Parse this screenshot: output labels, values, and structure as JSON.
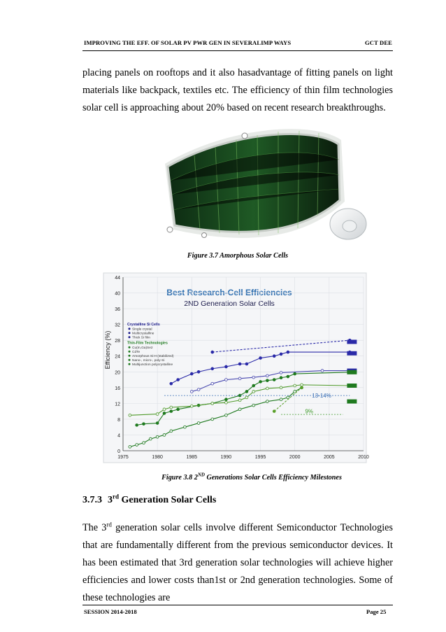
{
  "header": {
    "left": "IMPROVING THE EFF. OF SOLAR PV PWR GEN IN SEVERALIMP WAYS",
    "right": "GCT DEE"
  },
  "para1": "placing panels on rooftops and it also hasadvantage of fitting panels on light materials like backpack, textiles etc. The efficiency of thin film technologies solar cell is approaching about 20% based on recent research breakthroughs.",
  "figure1": {
    "caption": "Figure 3.7 Amorphous Solar Cells"
  },
  "figure2": {
    "caption_pre": "Figure 3.8 2",
    "caption_sup": "ND",
    "caption_post": " Generations Solar Cells Efficiency Milestones"
  },
  "section": {
    "number": "3.7.3",
    "title_pre": "3",
    "title_sup": "rd",
    "title_post": " Generation Solar Cells"
  },
  "para2": {
    "pre": "The 3",
    "sup": "rd",
    "post": " generation solar cells involve different Semiconductor Technologies that are fundamentally different from the previous semiconductor devices. It has been estimated that 3rd generation solar technologies will achieve higher efficiencies and lower costs than1st or 2nd generation technologies. Some of these technologies are"
  },
  "footer": {
    "left": "SESSION 2014-2018",
    "right": "Page 25"
  },
  "chart_data": {
    "type": "line",
    "title": "Best Research-Cell Efficiencies",
    "subtitle": "2ND Generation Solar Cells",
    "ylabel": "Efficiency (%)",
    "xlabel": "",
    "xlim": [
      1975,
      2010
    ],
    "ylim": [
      0,
      44
    ],
    "xticks": [
      "1975",
      "1980",
      "1985",
      "1990",
      "1995",
      "2000",
      "2005",
      "2010"
    ],
    "yticks": [
      "0",
      "4",
      "8",
      "12",
      "16",
      "20",
      "24",
      "28",
      "32",
      "36",
      "40",
      "44"
    ],
    "grid": true,
    "legend": {
      "groups": [
        {
          "heading": "Crystalline Si Cells",
          "color": "#1a1a8a",
          "items": [
            "Single crystal",
            "Multicrystalline",
            "Thick Si film"
          ]
        },
        {
          "heading": "Thin-Film Technologies",
          "color": "#1f7a1f",
          "items": [
            "Cu(In,Ga)Se2",
            "CdTe",
            "Amorphous Si:H (stabilized)",
            "Nano-, micro-, poly-Si",
            "Multijunction polycrystalline"
          ]
        }
      ]
    },
    "annotations": [
      "13-14%",
      "9%"
    ],
    "series": [
      {
        "color": "#2a2aa8",
        "dashed": true,
        "marker": "filled",
        "x": [
          1988,
          2008
        ],
        "y": [
          25.0,
          28.0
        ]
      },
      {
        "color": "#2a2aa8",
        "dashed": false,
        "marker": "filled",
        "x": [
          1982,
          1983,
          1985,
          1986,
          1988,
          1990,
          1992,
          1993,
          1995,
          1997,
          1998,
          1999,
          2008
        ],
        "y": [
          17.0,
          18.0,
          19.5,
          20.0,
          20.8,
          21.3,
          22.0,
          22.0,
          23.5,
          24.0,
          24.5,
          25.0,
          25.0
        ]
      },
      {
        "color": "#4a4ab0",
        "dashed": false,
        "marker": "open",
        "x": [
          1985,
          1986,
          1988,
          1990,
          1992,
          1994,
          1996,
          1998,
          2004,
          2008
        ],
        "y": [
          15.0,
          15.5,
          17.0,
          18.0,
          18.3,
          18.6,
          19.0,
          19.8,
          20.3,
          20.3
        ]
      },
      {
        "color": "#1f7a1f",
        "dashed": false,
        "marker": "filled",
        "x": [
          1977,
          1978,
          1980,
          1981,
          1982,
          1983,
          1986,
          1988,
          1990,
          1992,
          1993,
          1994,
          1995,
          1996,
          1997,
          1998,
          1999,
          2000,
          2008
        ],
        "y": [
          6.5,
          6.8,
          7.0,
          9.5,
          10.0,
          10.5,
          11.5,
          12.0,
          13.0,
          14.0,
          15.0,
          16.5,
          17.5,
          17.8,
          18.0,
          18.5,
          18.8,
          19.5,
          19.9
        ]
      },
      {
        "color": "#4f9a2a",
        "dashed": false,
        "marker": "open",
        "x": [
          1976,
          1980,
          1981,
          1982,
          1985,
          1988,
          1990,
          1992,
          1993,
          1994,
          1996,
          1998,
          2000,
          2001,
          2008
        ],
        "y": [
          9.0,
          9.3,
          10.5,
          11.0,
          11.3,
          12.0,
          12.2,
          12.8,
          13.5,
          15.0,
          15.8,
          16.0,
          16.5,
          16.7,
          16.5
        ]
      },
      {
        "color": "#1f7a1f",
        "dashed": false,
        "marker": "open",
        "x": [
          1976,
          1977,
          1978,
          1979,
          1980,
          1981,
          1982,
          1984,
          1986,
          1988,
          1990,
          1992,
          1994,
          1996,
          1998,
          1999,
          2000,
          2001
        ],
        "y": [
          1.0,
          1.5,
          2.0,
          3.0,
          3.5,
          4.0,
          5.0,
          6.0,
          7.0,
          8.0,
          9.0,
          10.5,
          11.5,
          12.5,
          13.0,
          13.5,
          15.0,
          16.0
        ]
      },
      {
        "color": "#5aa02a",
        "dashed": true,
        "marker": "filled",
        "x": [
          1997,
          2001
        ],
        "y": [
          10.0,
          16.0
        ]
      }
    ]
  }
}
